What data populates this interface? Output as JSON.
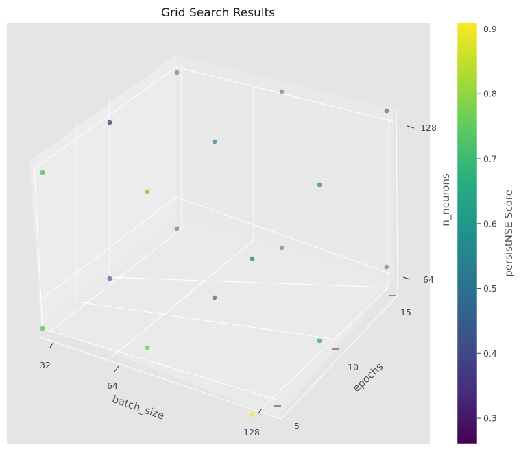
{
  "chart_data": {
    "type": "scatter",
    "projection": "3d",
    "title": "Grid Search Results",
    "xlabel": "batch_size",
    "ylabel": "epochs",
    "zlabel": "n_neurons",
    "x_ticks": [
      "32",
      "64",
      "128"
    ],
    "y_ticks": [
      "5",
      "10",
      "15"
    ],
    "z_ticks": [
      "64",
      "128"
    ],
    "colorbar": {
      "label": "persistNSE Score",
      "colormap": "viridis",
      "range": [
        0.26,
        0.91
      ],
      "ticks": [
        "0.3",
        "0.4",
        "0.5",
        "0.6",
        "0.7",
        "0.8",
        "0.9"
      ]
    },
    "points": [
      {
        "batch_size": 32,
        "epochs": 5,
        "n_neurons": 64,
        "score": 0.75
      },
      {
        "batch_size": 32,
        "epochs": 5,
        "n_neurons": 128,
        "score": 0.74
      },
      {
        "batch_size": 32,
        "epochs": 10,
        "n_neurons": 64,
        "score": 0.43
      },
      {
        "batch_size": 32,
        "epochs": 10,
        "n_neurons": 128,
        "score": 0.3
      },
      {
        "batch_size": 32,
        "epochs": 15,
        "n_neurons": 64,
        "score": 0.4
      },
      {
        "batch_size": 32,
        "epochs": 15,
        "n_neurons": 128,
        "score": 0.42
      },
      {
        "batch_size": 64,
        "epochs": 5,
        "n_neurons": 64,
        "score": 0.77
      },
      {
        "batch_size": 64,
        "epochs": 5,
        "n_neurons": 128,
        "score": 0.78
      },
      {
        "batch_size": 64,
        "epochs": 10,
        "n_neurons": 64,
        "score": 0.45
      },
      {
        "batch_size": 64,
        "epochs": 10,
        "n_neurons": 128,
        "score": 0.49
      },
      {
        "batch_size": 64,
        "epochs": 15,
        "n_neurons": 64,
        "score": 0.45
      },
      {
        "batch_size": 64,
        "epochs": 15,
        "n_neurons": 128,
        "score": 0.44
      },
      {
        "batch_size": 128,
        "epochs": 5,
        "n_neurons": 64,
        "score": 0.91
      },
      {
        "batch_size": 128,
        "epochs": 10,
        "n_neurons": 64,
        "score": 0.61
      },
      {
        "batch_size": 128,
        "epochs": 10,
        "n_neurons": 128,
        "score": 0.54
      },
      {
        "batch_size": 128,
        "epochs": 15,
        "n_neurons": 64,
        "score": 0.42
      },
      {
        "batch_size": 128,
        "epochs": 15,
        "n_neurons": 128,
        "score": 0.31
      },
      {
        "batch_size": 128,
        "epochs": 5,
        "n_neurons": 128,
        "score": 0.6
      }
    ]
  }
}
